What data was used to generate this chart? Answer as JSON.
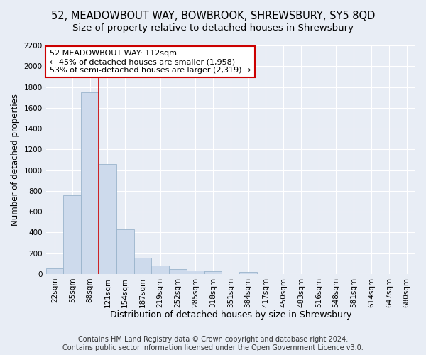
{
  "title1": "52, MEADOWBOUT WAY, BOWBROOK, SHREWSBURY, SY5 8QD",
  "title2": "Size of property relative to detached houses in Shrewsbury",
  "xlabel": "Distribution of detached houses by size in Shrewsbury",
  "ylabel": "Number of detached properties",
  "categories": [
    "22sqm",
    "55sqm",
    "88sqm",
    "121sqm",
    "154sqm",
    "187sqm",
    "219sqm",
    "252sqm",
    "285sqm",
    "318sqm",
    "351sqm",
    "384sqm",
    "417sqm",
    "450sqm",
    "483sqm",
    "516sqm",
    "548sqm",
    "581sqm",
    "614sqm",
    "647sqm",
    "680sqm"
  ],
  "values": [
    55,
    760,
    1750,
    1060,
    430,
    155,
    80,
    45,
    35,
    25,
    0,
    18,
    0,
    0,
    0,
    0,
    0,
    0,
    0,
    0,
    0
  ],
  "bar_color": "#cddaec",
  "bar_edge_color": "#9ab4cc",
  "vline_color": "#cc0000",
  "vline_index": 3,
  "annotation_line1": "52 MEADOWBOUT WAY: 112sqm",
  "annotation_line2": "← 45% of detached houses are smaller (1,958)",
  "annotation_line3": "53% of semi-detached houses are larger (2,319) →",
  "annotation_box_color": "#ffffff",
  "annotation_box_edge": "#cc0000",
  "ylim": [
    0,
    2200
  ],
  "yticks": [
    0,
    200,
    400,
    600,
    800,
    1000,
    1200,
    1400,
    1600,
    1800,
    2000,
    2200
  ],
  "footer1": "Contains HM Land Registry data © Crown copyright and database right 2024.",
  "footer2": "Contains public sector information licensed under the Open Government Licence v3.0.",
  "bg_color": "#e8edf5",
  "plot_bg_color": "#e8edf5",
  "grid_color": "#ffffff",
  "title1_fontsize": 10.5,
  "title2_fontsize": 9.5,
  "xlabel_fontsize": 9,
  "ylabel_fontsize": 8.5,
  "tick_fontsize": 7.5,
  "annot_fontsize": 8,
  "footer_fontsize": 7
}
